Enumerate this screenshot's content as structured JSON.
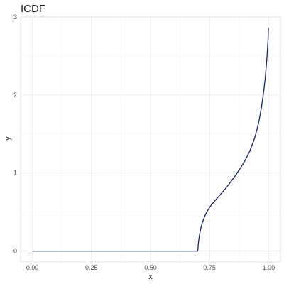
{
  "chart_data": {
    "type": "line",
    "title": "ICDF",
    "xlabel": "x",
    "ylabel": "y",
    "xlim": [
      -0.05,
      1.05
    ],
    "ylim": [
      -0.14,
      3.0
    ],
    "grid": true,
    "x_ticks": [
      0,
      0.25,
      0.5,
      0.75,
      1
    ],
    "x_tick_labels": [
      "0.00",
      "0.25",
      "0.50",
      "0.75",
      "1.00"
    ],
    "y_ticks": [
      0,
      1,
      2,
      3
    ],
    "y_tick_labels": [
      "0",
      "1",
      "2",
      "3"
    ],
    "series": [
      {
        "color": "#14215e",
        "x": [
          0,
          0.1,
          0.2,
          0.3,
          0.4,
          0.5,
          0.6,
          0.7,
          0.7005,
          0.701,
          0.702,
          0.703,
          0.705,
          0.708,
          0.712,
          0.716,
          0.72,
          0.73,
          0.74,
          0.75,
          0.76,
          0.78,
          0.8,
          0.82,
          0.84,
          0.86,
          0.88,
          0.9,
          0.92,
          0.94,
          0.95,
          0.96,
          0.97,
          0.98,
          0.985,
          0.99,
          0.993,
          0.996,
          0.998,
          0.999
        ],
        "y": [
          0,
          0,
          0,
          0,
          0,
          0,
          0,
          0,
          0.03,
          0.05,
          0.08,
          0.11,
          0.16,
          0.22,
          0.28,
          0.33,
          0.37,
          0.45,
          0.51,
          0.56,
          0.6,
          0.67,
          0.74,
          0.81,
          0.89,
          0.97,
          1.06,
          1.16,
          1.28,
          1.44,
          1.55,
          1.68,
          1.85,
          2.07,
          2.2,
          2.37,
          2.49,
          2.63,
          2.75,
          2.86
        ]
      }
    ]
  }
}
